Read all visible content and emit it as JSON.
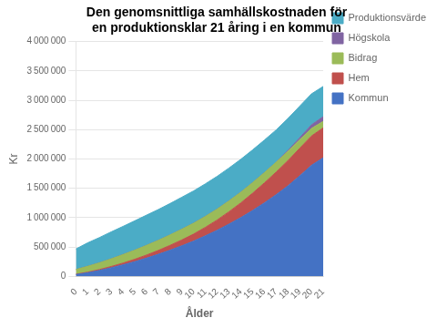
{
  "chart_data": {
    "type": "area",
    "title": [
      "Den genomsnittliga samhällskostnaden för",
      "en produktionsklar 21 åring i en kommun"
    ],
    "xlabel": "Ålder",
    "ylabel": "Kr",
    "x": [
      0,
      1,
      2,
      3,
      4,
      5,
      6,
      7,
      8,
      9,
      10,
      11,
      12,
      13,
      14,
      15,
      16,
      17,
      18,
      19,
      20,
      21
    ],
    "series": [
      {
        "name": "Kommun",
        "color": "#4472C4",
        "values": [
          30000,
          60000,
          100000,
          145000,
          195000,
          250000,
          310000,
          375000,
          445000,
          520000,
          600000,
          690000,
          785000,
          890000,
          1000000,
          1120000,
          1250000,
          1390000,
          1540000,
          1710000,
          1890000,
          2020000
        ]
      },
      {
        "name": "Hem",
        "color": "#C0504D",
        "values": [
          5000,
          10000,
          15000,
          22000,
          30000,
          40000,
          52000,
          66000,
          82000,
          100000,
          120000,
          145000,
          175000,
          210000,
          250000,
          295000,
          340000,
          385000,
          430000,
          470000,
          500000,
          510000
        ]
      },
      {
        "name": "Bidrag",
        "color": "#9BBB59",
        "values": [
          80000,
          100000,
          115000,
          130000,
          145000,
          155000,
          165000,
          172000,
          178000,
          183000,
          185000,
          186000,
          186000,
          185000,
          183000,
          180000,
          175000,
          168000,
          158000,
          145000,
          130000,
          110000
        ]
      },
      {
        "name": "Högskola",
        "color": "#8064A2",
        "values": [
          0,
          0,
          0,
          0,
          0,
          0,
          0,
          0,
          0,
          0,
          0,
          0,
          0,
          0,
          0,
          0,
          0,
          0,
          15000,
          35000,
          60000,
          80000
        ]
      },
      {
        "name": "Produktionsvärde",
        "color": "#4BACC6",
        "values": [
          350000,
          400000,
          430000,
          460000,
          480000,
          500000,
          515000,
          525000,
          535000,
          545000,
          550000,
          555000,
          558000,
          560000,
          560000,
          558000,
          555000,
          550000,
          545000,
          538000,
          528000,
          515000
        ]
      }
    ],
    "stacked": true,
    "xlim": [
      0,
      21
    ],
    "xticks": [
      0,
      1,
      2,
      3,
      4,
      5,
      6,
      7,
      8,
      9,
      10,
      11,
      12,
      13,
      14,
      15,
      16,
      17,
      18,
      19,
      20,
      21
    ],
    "ylim": [
      0,
      4000000
    ],
    "yticks": [
      0,
      {
        "value": 500000,
        "label": "500 000"
      },
      {
        "value": 1000000,
        "label": "1 000 000"
      },
      {
        "value": 1500000,
        "label": "1 500 000"
      },
      {
        "value": 2000000,
        "label": "2 000 000"
      },
      {
        "value": 2500000,
        "label": "2 500 000"
      },
      {
        "value": 3000000,
        "label": "3 000 000"
      },
      {
        "value": 3500000,
        "label": "3 500 000"
      },
      {
        "value": 4000000,
        "label": "4 000 000"
      }
    ],
    "grid": "y",
    "legend": "right"
  }
}
